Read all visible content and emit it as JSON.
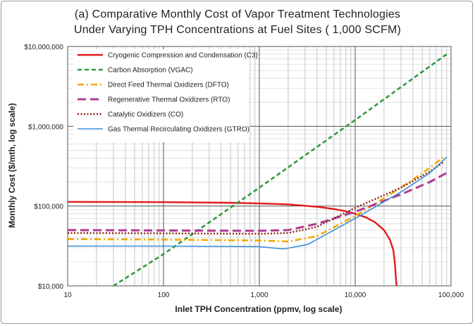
{
  "chart_data": {
    "type": "line",
    "title_line1": "(a) Comparative Monthly Cost of Vapor Treatment Technologies",
    "title_line2": "Under Varying TPH Concentrations at Fuel Sites ( 1,000 SCFM)",
    "xlabel": "Inlet TPH Concentration (ppmv, log scale)",
    "ylabel": "Monthly Cost ($/mth, log scale)",
    "x_scale": "log",
    "y_scale": "log",
    "xlim": [
      10,
      100000
    ],
    "ylim": [
      10000,
      10000000
    ],
    "x_ticks": [
      {
        "value": 10,
        "label": "10"
      },
      {
        "value": 100,
        "label": "100"
      },
      {
        "value": 1000,
        "label": "1,000"
      },
      {
        "value": 10000,
        "label": "10,000"
      },
      {
        "value": 100000,
        "label": "100,000"
      }
    ],
    "y_ticks": [
      {
        "value": 10000,
        "label": "$10,000"
      },
      {
        "value": 100000,
        "label": "$100,000"
      },
      {
        "value": 1000000,
        "label": "$1,000,000"
      },
      {
        "value": 10000000,
        "label": "$10,000,000"
      }
    ],
    "grid": "minor and major, both axes",
    "legend_position": "top-left inside plot",
    "series": [
      {
        "name": "Cryogenic Compression and Condensation (C3)",
        "color": "#e31a1c",
        "dash": "solid",
        "x": [
          10,
          100,
          500,
          1000,
          2000,
          4000,
          6000,
          8000,
          10000,
          13000,
          16000,
          20000,
          23000,
          25000,
          26000,
          26500,
          27000
        ],
        "y": [
          113000,
          112000,
          110000,
          108000,
          105000,
          98000,
          92000,
          86000,
          80000,
          72000,
          63000,
          50000,
          38000,
          28000,
          19000,
          13000,
          10000
        ]
      },
      {
        "name": "Carbon Absorption (VGAC)",
        "color": "#2e9a3e",
        "dash": "dashed",
        "x": [
          30,
          100,
          1000,
          10000,
          90000
        ],
        "y": [
          10000,
          25000,
          170000,
          1200000,
          8000000
        ]
      },
      {
        "name": "Direct Fired Thermal Oxidizers (DFTO)",
        "color": "#f2a900",
        "dash": "dashdot",
        "x": [
          10,
          100,
          1000,
          2000,
          4000,
          10000,
          30000,
          60000,
          85000
        ],
        "y": [
          38500,
          38000,
          37000,
          36000,
          42000,
          75000,
          170000,
          300000,
          420000
        ]
      },
      {
        "name": "Regenerative Thermal Oxidizers (RTO)",
        "color": "#b03a94",
        "dash": "longdash",
        "x": [
          10,
          100,
          1000,
          2000,
          4000,
          10000,
          30000,
          60000,
          90000
        ],
        "y": [
          50000,
          49500,
          49000,
          50000,
          60000,
          85000,
          140000,
          200000,
          260000
        ]
      },
      {
        "name": "Catalytic Oxidizers (CO)",
        "color": "#8b2010",
        "dash": "dotted",
        "x": [
          10,
          100,
          1000,
          2000,
          4000,
          10000,
          30000,
          60000,
          85000
        ],
        "y": [
          46000,
          45500,
          45000,
          46000,
          55000,
          95000,
          170000,
          270000,
          360000
        ]
      },
      {
        "name": "Gas Thermal Recirculating Oxidizers (GTRO)",
        "color": "#3a8fd9",
        "dash": "solid",
        "x": [
          10,
          100,
          1000,
          1800,
          3200,
          10000,
          30000,
          60000,
          90000
        ],
        "y": [
          31500,
          31500,
          31000,
          29000,
          33000,
          70000,
          150000,
          260000,
          410000
        ]
      }
    ]
  }
}
